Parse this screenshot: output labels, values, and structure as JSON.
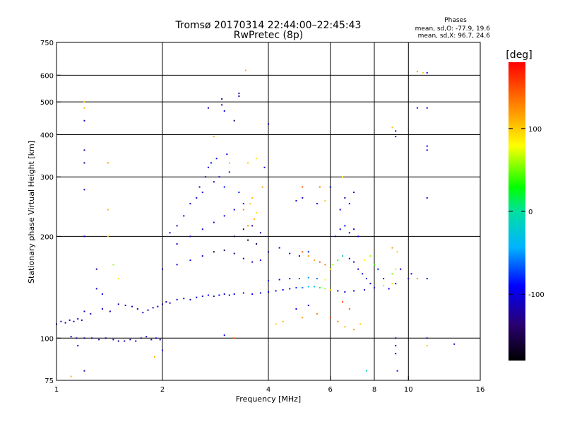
{
  "chart_data": {
    "type": "scatter",
    "title": "Tromsø 20170314 22:44:00–22:45:43",
    "subtitle": "RwPretec (8p)",
    "xlabel": "Frequency [MHz]",
    "ylabel": "Stationary phase Virtual Height [km]",
    "x_scale": "log",
    "y_scale": "log",
    "xlim": [
      1,
      16
    ],
    "ylim": [
      75,
      750
    ],
    "x_ticks": [
      1,
      2,
      4,
      6,
      8,
      10,
      16
    ],
    "y_ticks": [
      75,
      100,
      200,
      300,
      400,
      500,
      600,
      750
    ],
    "x_gridlines": [
      2,
      4,
      6,
      8,
      10
    ],
    "y_gridlines": [
      100,
      200,
      300,
      400,
      500,
      600
    ],
    "grid": true,
    "phase_stats": {
      "title": "Phases",
      "line1": "mean, sd,O: -77.9, 19.6",
      "line2": "mean, sd,X:  96.7, 24.6"
    },
    "colorbar": {
      "label": "[deg]",
      "ticks": [
        {
          "label": "100",
          "value": 100
        },
        {
          "label": "0",
          "value": 0
        },
        {
          "label": "-100",
          "value": -100
        }
      ],
      "range": [
        -180,
        180
      ]
    },
    "series": [
      {
        "points": [
          [
            1.0,
            110,
            -115
          ],
          [
            1.03,
            112,
            -110
          ],
          [
            1.06,
            111,
            -120
          ],
          [
            1.09,
            113,
            -105
          ],
          [
            1.12,
            112,
            -115
          ],
          [
            1.15,
            114,
            -110
          ],
          [
            1.18,
            113,
            -118
          ],
          [
            1.1,
            101,
            -120
          ],
          [
            1.14,
            100,
            -118
          ],
          [
            1.2,
            100,
            -125
          ],
          [
            1.26,
            100,
            -115
          ],
          [
            1.32,
            99,
            -120
          ],
          [
            1.38,
            100,
            -112
          ],
          [
            1.45,
            99,
            -118
          ],
          [
            1.5,
            98,
            -125
          ],
          [
            1.56,
            98,
            -115
          ],
          [
            1.62,
            99,
            -120
          ],
          [
            1.68,
            98,
            -110
          ],
          [
            1.74,
            100,
            -118
          ],
          [
            1.8,
            101,
            -115
          ],
          [
            1.86,
            99,
            -122
          ],
          [
            1.92,
            100,
            -112
          ],
          [
            1.97,
            99,
            -118
          ],
          [
            1.2,
            120,
            -110
          ],
          [
            1.25,
            118,
            -115
          ],
          [
            1.35,
            122,
            -112
          ],
          [
            1.42,
            120,
            -118
          ],
          [
            1.5,
            126,
            -105
          ],
          [
            1.57,
            125,
            -110
          ],
          [
            1.64,
            124,
            -115
          ],
          [
            1.7,
            122,
            -112
          ],
          [
            1.76,
            119,
            -108
          ],
          [
            1.82,
            121,
            -115
          ],
          [
            1.88,
            123,
            -110
          ],
          [
            1.94,
            124,
            -105
          ],
          [
            2.0,
            126,
            -115
          ],
          [
            2.05,
            128,
            -110
          ],
          [
            2.1,
            127,
            -100
          ],
          [
            2.2,
            130,
            -105
          ],
          [
            2.3,
            131,
            -112
          ],
          [
            2.4,
            130,
            -108
          ],
          [
            2.5,
            132,
            -100
          ],
          [
            2.6,
            133,
            -110
          ],
          [
            2.7,
            134,
            -95
          ],
          [
            2.8,
            133,
            -120
          ],
          [
            2.9,
            134,
            -105
          ],
          [
            3.0,
            135,
            -112
          ],
          [
            3.1,
            134,
            -100
          ],
          [
            3.2,
            135,
            -108
          ],
          [
            3.4,
            136,
            -95
          ],
          [
            3.6,
            135,
            -102
          ],
          [
            3.8,
            136,
            -110
          ],
          [
            4.0,
            137,
            -105
          ],
          [
            4.2,
            138,
            -100
          ],
          [
            4.4,
            139,
            -95
          ],
          [
            4.6,
            140,
            -88
          ],
          [
            4.8,
            141,
            -80
          ],
          [
            5.0,
            141,
            -60
          ],
          [
            5.2,
            142,
            -40
          ],
          [
            5.4,
            142,
            -20
          ],
          [
            5.6,
            141,
            30
          ],
          [
            5.8,
            140,
            60
          ],
          [
            6.0,
            139,
            100
          ],
          [
            6.3,
            138,
            -90
          ],
          [
            6.6,
            137,
            -100
          ],
          [
            7.0,
            138,
            -105
          ],
          [
            7.5,
            139,
            -110
          ],
          [
            8.0,
            141,
            -100
          ],
          [
            8.5,
            143,
            60
          ],
          [
            9.0,
            145,
            90
          ],
          [
            4.0,
            148,
            -100
          ],
          [
            4.3,
            149,
            -95
          ],
          [
            4.6,
            150,
            -85
          ],
          [
            4.9,
            150,
            -70
          ],
          [
            5.2,
            151,
            -50
          ],
          [
            5.5,
            150,
            -60
          ],
          [
            5.8,
            149,
            80
          ],
          [
            2.0,
            160,
            -110
          ],
          [
            2.2,
            165,
            -100
          ],
          [
            2.4,
            170,
            -95
          ],
          [
            2.6,
            175,
            -105
          ],
          [
            2.8,
            180,
            -160
          ],
          [
            3.0,
            182,
            -140
          ],
          [
            3.2,
            178,
            -130
          ],
          [
            3.4,
            172,
            -120
          ],
          [
            3.6,
            168,
            -110
          ],
          [
            3.8,
            170,
            -100
          ],
          [
            2.2,
            190,
            -100
          ],
          [
            2.4,
            200,
            -105
          ],
          [
            2.6,
            210,
            -95
          ],
          [
            2.8,
            220,
            -110
          ],
          [
            3.0,
            230,
            -100
          ],
          [
            3.2,
            240,
            -105
          ],
          [
            3.4,
            250,
            -95
          ],
          [
            3.6,
            260,
            110
          ],
          [
            3.3,
            270,
            -85
          ],
          [
            3.0,
            280,
            -90
          ],
          [
            2.8,
            290,
            -100
          ],
          [
            2.9,
            300,
            -110
          ],
          [
            3.1,
            310,
            -95
          ],
          [
            2.7,
            320,
            -105
          ],
          [
            2.85,
            340,
            -95
          ],
          [
            3.05,
            350,
            -100
          ],
          [
            2.4,
            250,
            -100
          ],
          [
            2.5,
            260,
            -110
          ],
          [
            2.6,
            270,
            -95
          ],
          [
            2.55,
            280,
            -105
          ],
          [
            2.65,
            300,
            -100
          ],
          [
            2.75,
            330,
            -90
          ],
          [
            2.3,
            230,
            -100
          ],
          [
            2.2,
            215,
            -110
          ],
          [
            2.1,
            205,
            -100
          ],
          [
            3.2,
            200,
            -150
          ],
          [
            3.4,
            210,
            -140
          ],
          [
            3.6,
            215,
            -130
          ],
          [
            3.8,
            205,
            -120
          ],
          [
            3.5,
            195,
            -155
          ],
          [
            3.7,
            190,
            -145
          ],
          [
            3.5,
            215,
            120
          ],
          [
            3.65,
            225,
            110
          ],
          [
            3.7,
            235,
            90
          ],
          [
            3.4,
            240,
            130
          ],
          [
            3.55,
            250,
            100
          ],
          [
            4.0,
            180,
            -120
          ],
          [
            4.3,
            185,
            -110
          ],
          [
            4.6,
            178,
            -100
          ],
          [
            4.9,
            175,
            -95
          ],
          [
            5.2,
            180,
            -85
          ],
          [
            5.0,
            180,
            140
          ],
          [
            5.2,
            175,
            120
          ],
          [
            5.4,
            170,
            110
          ],
          [
            5.6,
            168,
            150
          ],
          [
            5.8,
            165,
            130
          ],
          [
            6.0,
            160,
            90
          ],
          [
            6.1,
            165,
            60
          ],
          [
            6.3,
            170,
            40
          ],
          [
            6.5,
            175,
            -20
          ],
          [
            6.8,
            172,
            -110
          ],
          [
            7.0,
            168,
            -120
          ],
          [
            7.2,
            160,
            -100
          ],
          [
            7.4,
            155,
            -95
          ],
          [
            7.6,
            150,
            -105
          ],
          [
            7.8,
            145,
            -110
          ],
          [
            6.2,
            200,
            -100
          ],
          [
            6.4,
            210,
            -95
          ],
          [
            6.6,
            215,
            -90
          ],
          [
            6.8,
            205,
            -110
          ],
          [
            7.0,
            210,
            -100
          ],
          [
            7.2,
            200,
            -95
          ],
          [
            6.4,
            240,
            -100
          ],
          [
            6.6,
            260,
            -110
          ],
          [
            6.8,
            250,
            -95
          ],
          [
            7.0,
            270,
            -105
          ],
          [
            6.0,
            280,
            -100
          ],
          [
            5.0,
            260,
            -110
          ],
          [
            5.5,
            250,
            -95
          ],
          [
            4.8,
            255,
            -100
          ],
          [
            5.0,
            280,
            150
          ],
          [
            5.6,
            280,
            130
          ],
          [
            5.8,
            255,
            100
          ],
          [
            6.5,
            300,
            90
          ],
          [
            7.5,
            170,
            80
          ],
          [
            7.8,
            175,
            60
          ],
          [
            8.0,
            165,
            40
          ],
          [
            8.2,
            160,
            -100
          ],
          [
            8.5,
            150,
            -110
          ],
          [
            8.8,
            140,
            -95
          ],
          [
            9.0,
            155,
            50
          ],
          [
            9.2,
            160,
            90
          ],
          [
            9.0,
            185,
            120
          ],
          [
            9.3,
            180,
            100
          ],
          [
            6.0,
            115,
            150
          ],
          [
            6.3,
            112,
            130
          ],
          [
            6.6,
            108,
            110
          ],
          [
            7.0,
            106,
            120
          ],
          [
            7.3,
            110,
            100
          ],
          [
            6.8,
            122,
            140
          ],
          [
            6.5,
            128,
            150
          ],
          [
            1.2,
            440,
            -110
          ],
          [
            1.2,
            360,
            -115
          ],
          [
            1.2,
            330,
            -120
          ],
          [
            1.2,
            275,
            -110
          ],
          [
            1.2,
            200,
            -100
          ],
          [
            1.2,
            500,
            100
          ],
          [
            1.2,
            480,
            110
          ],
          [
            1.3,
            140,
            -110
          ],
          [
            1.35,
            135,
            -100
          ],
          [
            1.3,
            160,
            -120
          ],
          [
            1.4,
            330,
            120
          ],
          [
            1.4,
            200,
            100
          ],
          [
            1.45,
            165,
            60
          ],
          [
            1.5,
            150,
            90
          ],
          [
            1.4,
            240,
            110
          ],
          [
            2.7,
            480,
            -110
          ],
          [
            2.95,
            510,
            -130
          ],
          [
            2.95,
            490,
            -120
          ],
          [
            3.0,
            470,
            -100
          ],
          [
            3.2,
            440,
            -140
          ],
          [
            3.3,
            520,
            -115
          ],
          [
            3.3,
            530,
            -120
          ],
          [
            3.45,
            620,
            110
          ],
          [
            4.0,
            430,
            -110
          ],
          [
            2.8,
            395,
            110
          ],
          [
            3.1,
            330,
            110
          ],
          [
            3.5,
            330,
            100
          ],
          [
            3.7,
            340,
            90
          ],
          [
            3.9,
            320,
            -100
          ],
          [
            3.85,
            280,
            120
          ],
          [
            9.2,
            410,
            -110
          ],
          [
            9.2,
            395,
            -115
          ],
          [
            9.0,
            420,
            110
          ],
          [
            10.6,
            480,
            -110
          ],
          [
            11.3,
            480,
            -100
          ],
          [
            11.3,
            370,
            -110
          ],
          [
            11.3,
            360,
            -100
          ],
          [
            10.6,
            615,
            120
          ],
          [
            11.0,
            610,
            100
          ],
          [
            11.3,
            610,
            -110
          ],
          [
            11.3,
            260,
            -100
          ],
          [
            11.3,
            150,
            -110
          ],
          [
            10.6,
            150,
            120
          ],
          [
            10.2,
            155,
            -100
          ],
          [
            10.0,
            150,
            -110
          ],
          [
            9.5,
            160,
            -100
          ],
          [
            9.2,
            145,
            -90
          ],
          [
            9.2,
            100,
            -110
          ],
          [
            9.2,
            95,
            -100
          ],
          [
            9.2,
            90,
            -120
          ],
          [
            11.3,
            100,
            -110
          ],
          [
            11.3,
            95,
            100
          ],
          [
            13.5,
            96,
            -100
          ],
          [
            7.6,
            80,
            -10
          ],
          [
            9.3,
            80,
            -100
          ],
          [
            3.2,
            100,
            150
          ],
          [
            1.1,
            77,
            110
          ],
          [
            1.15,
            95,
            -100
          ],
          [
            1.2,
            80,
            -110
          ],
          [
            1.9,
            88,
            110
          ],
          [
            2.0,
            92,
            -100
          ],
          [
            3.0,
            102,
            -100
          ],
          [
            4.2,
            110,
            100
          ],
          [
            4.4,
            112,
            110
          ],
          [
            5.0,
            115,
            120
          ],
          [
            5.5,
            118,
            130
          ],
          [
            4.8,
            122,
            -100
          ],
          [
            5.2,
            125,
            -110
          ]
        ]
      }
    ]
  }
}
